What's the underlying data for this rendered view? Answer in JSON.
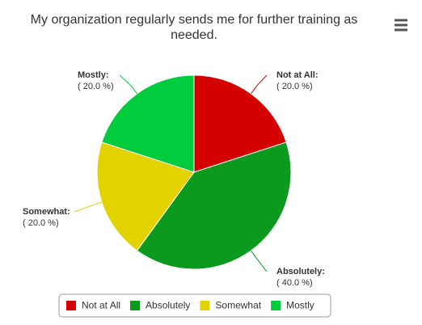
{
  "chart_data": {
    "type": "pie",
    "title": "My organization regularly sends me for further training as needed.",
    "categories": [
      "Not at All",
      "Absolutely",
      "Somewhat",
      "Mostly"
    ],
    "values": [
      20,
      40,
      20,
      20
    ],
    "point_labels": [
      "Not at All:",
      "Absolutely:",
      "Somewhat:",
      "Mostly:"
    ],
    "value_labels": [
      "( 20.0 %)",
      "( 40.0 %)",
      "( 20.0 %)",
      "( 20.0 %)"
    ],
    "colors": [
      "#d40000",
      "#0c9a1e",
      "#e2d200",
      "#00cc3e"
    ],
    "legend": "bottom"
  }
}
